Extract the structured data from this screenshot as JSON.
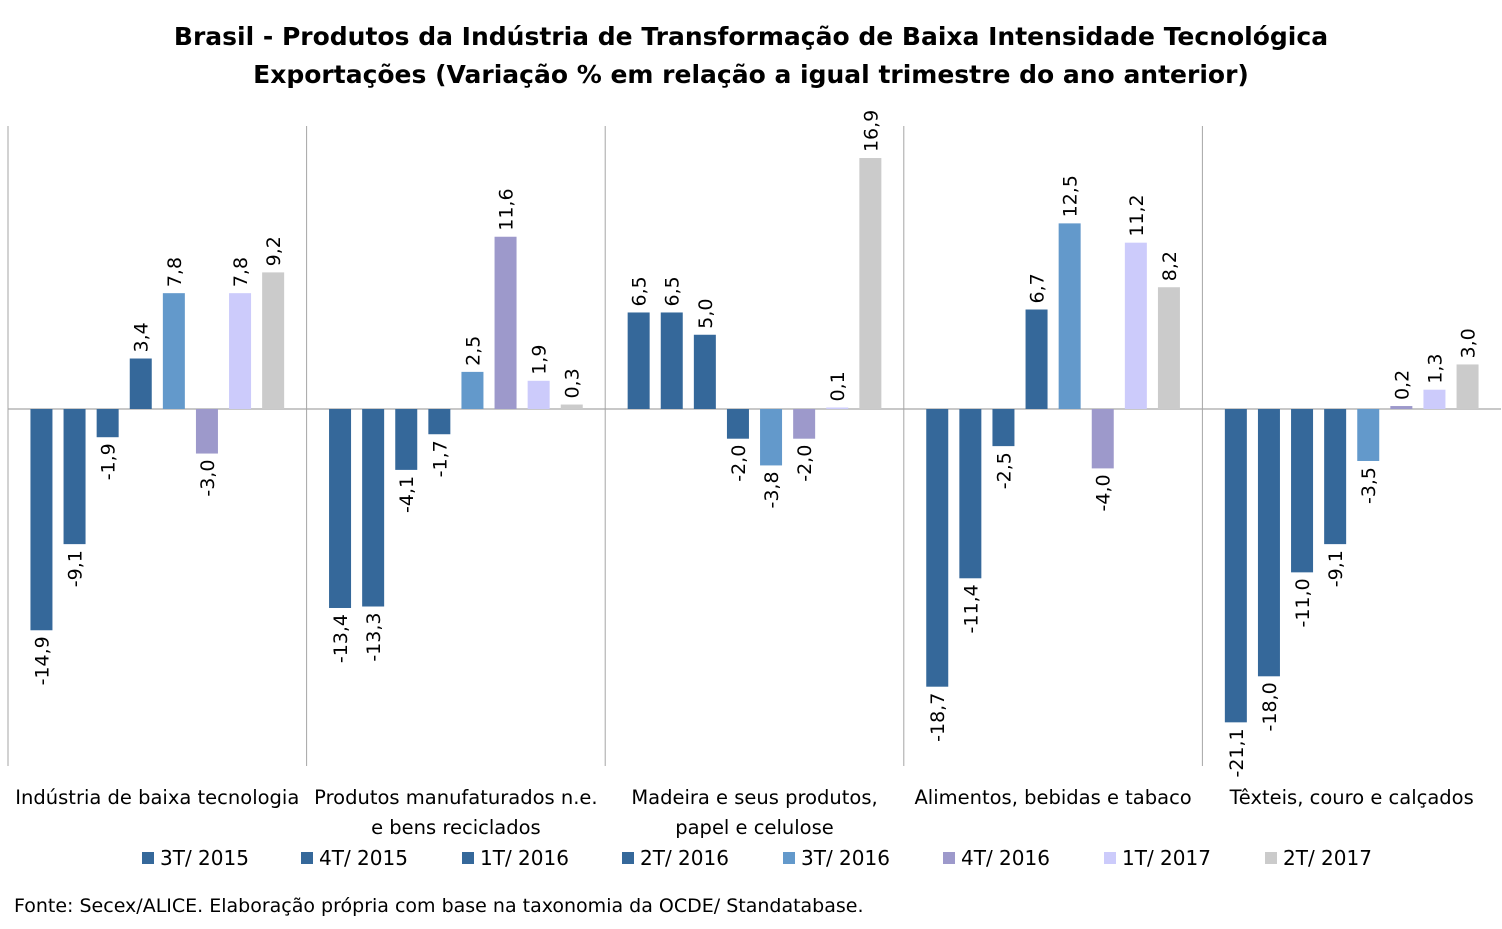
{
  "chart_data": {
    "type": "bar",
    "title": "Brasil - Produtos da Indústria de Transformação de Baixa Intensidade Tecnológica",
    "subtitle": "Exportações (Variação % em relação a igual trimestre do ano anterior)",
    "categories": [
      [
        "Indústria de baixa tecnologia"
      ],
      [
        "Produtos manufaturados n.e.",
        "e bens reciclados"
      ],
      [
        "Madeira e seus produtos,",
        "papel e celulose"
      ],
      [
        "Alimentos, bebidas e tabaco"
      ],
      [
        "Têxteis, couro e calçados"
      ]
    ],
    "series": [
      {
        "name": "3T/ 2015",
        "color": "#35689a",
        "values": [
          -14.9,
          -13.4,
          6.5,
          -18.7,
          -21.1
        ]
      },
      {
        "name": "4T/ 2015",
        "color": "#35689a",
        "values": [
          -9.1,
          -13.3,
          6.5,
          -11.4,
          -18.0
        ]
      },
      {
        "name": "1T/ 2016",
        "color": "#35689a",
        "values": [
          -1.9,
          -4.1,
          5.0,
          -2.5,
          -11.0
        ]
      },
      {
        "name": "2T/ 2016",
        "color": "#35689a",
        "values": [
          3.4,
          -1.7,
          -2.0,
          6.7,
          -9.1
        ]
      },
      {
        "name": "3T/ 2016",
        "color": "#6399cb",
        "values": [
          7.8,
          2.5,
          -3.8,
          12.5,
          -3.5
        ]
      },
      {
        "name": "4T/ 2016",
        "color": "#9d99cb",
        "values": [
          -3.0,
          11.6,
          -2.0,
          -4.0,
          0.2
        ]
      },
      {
        "name": "1T/ 2017",
        "color": "#cccbfb",
        "values": [
          7.8,
          1.9,
          0.1,
          11.2,
          1.3
        ]
      },
      {
        "name": "2T/ 2017",
        "color": "#cbcbcb",
        "values": [
          9.2,
          0.3,
          16.9,
          8.2,
          3.0
        ]
      }
    ],
    "ylim": [
      -23.5,
      19
    ],
    "decimal_separator": ",",
    "legend_position": "bottom",
    "grid": false
  },
  "source": "Fonte: Secex/ALICE. Elaboração própria com base na taxonomia da OCDE/ Standatabase."
}
